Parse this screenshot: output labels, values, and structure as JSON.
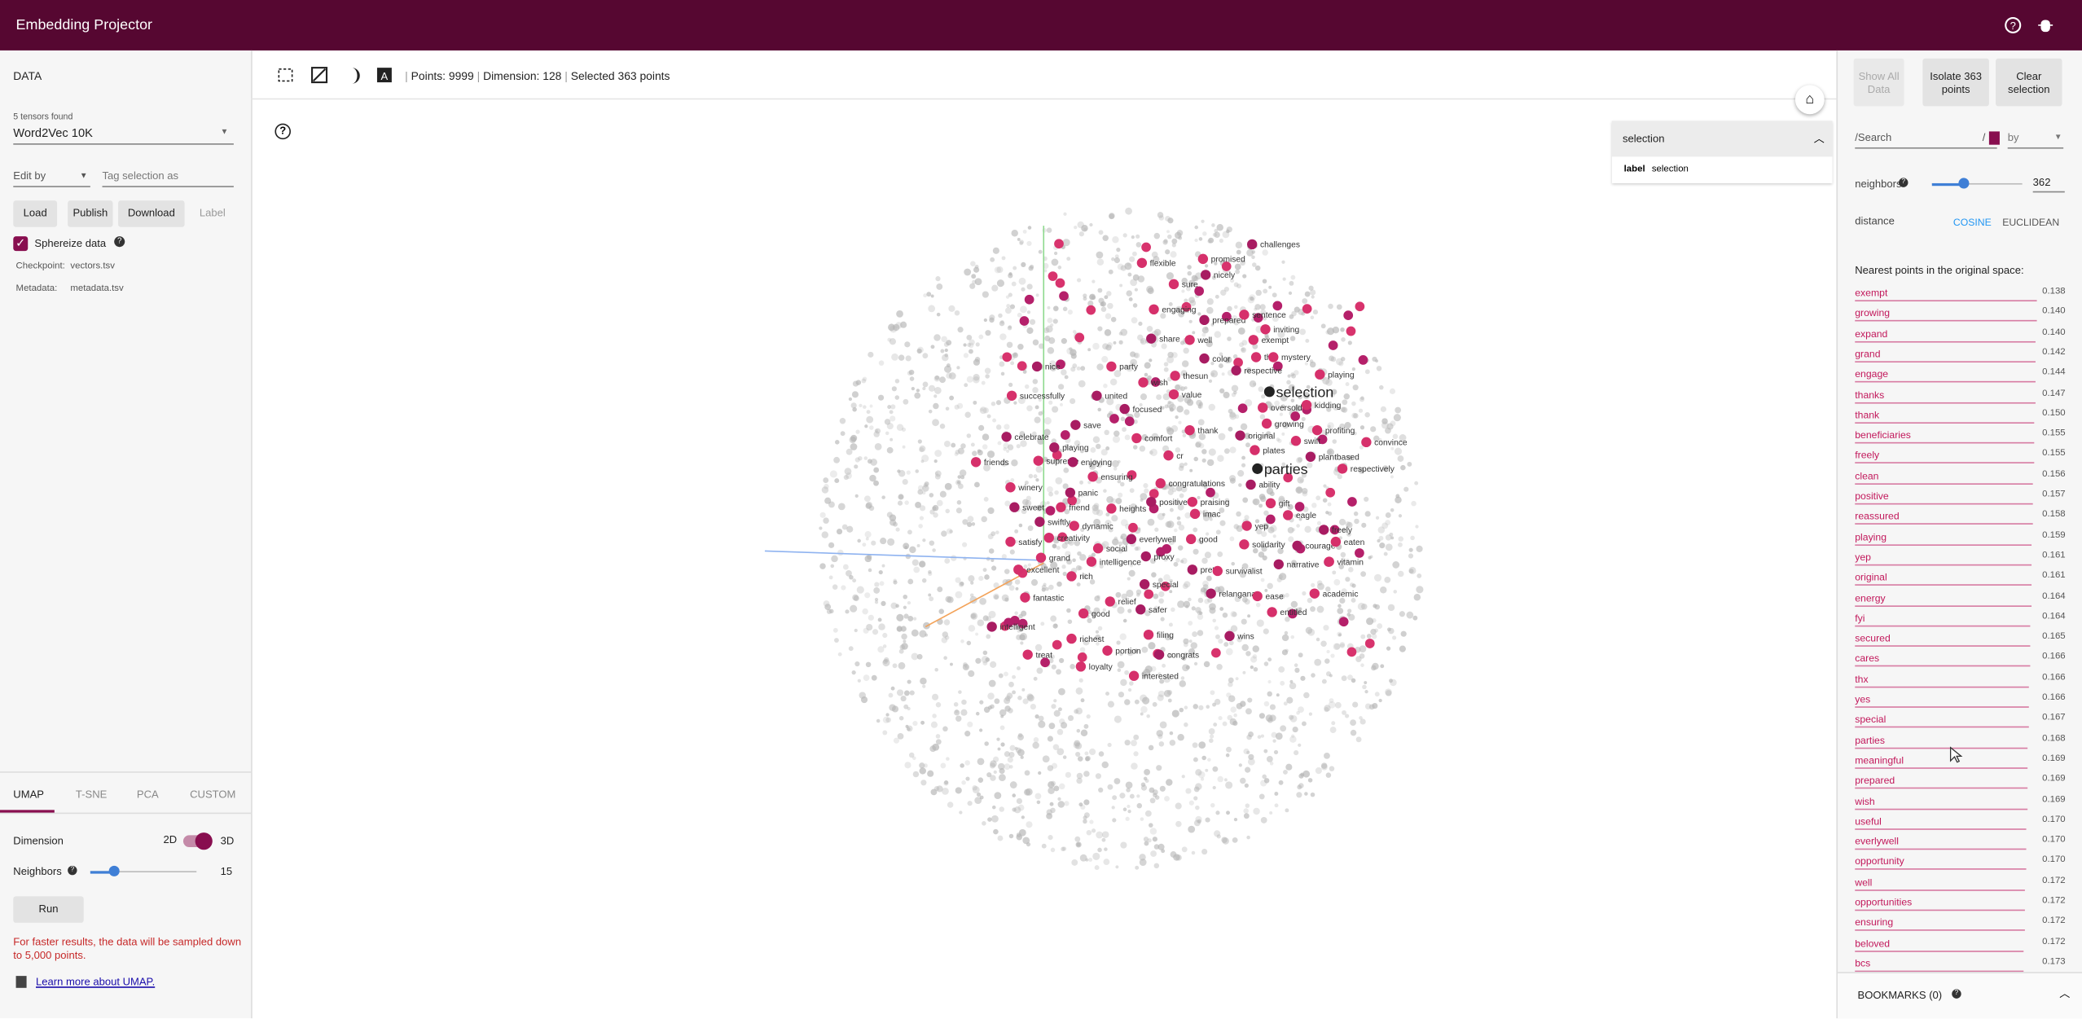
{
  "header": {
    "title": "Embedding Projector"
  },
  "data_panel": {
    "heading": "DATA",
    "tensors_found": "5 tensors found",
    "tensor": "Word2Vec 10K",
    "edit_by": "Edit by",
    "tag_placeholder": "Tag selection as",
    "buttons": [
      "Load",
      "Publish",
      "Download",
      "Label"
    ],
    "sphereize": "Sphereize data",
    "checkpoint_label": "Checkpoint:",
    "checkpoint": "vectors.tsv",
    "metadata_label": "Metadata:",
    "metadata": "metadata.tsv"
  },
  "projection_panel": {
    "tabs": [
      "UMAP",
      "T-SNE",
      "PCA",
      "CUSTOM"
    ],
    "dimension": "Dimension",
    "dim_2d": "2D",
    "dim_3d": "3D",
    "neighbors": "Neighbors",
    "neighbors_value": "15",
    "run": "Run",
    "note": "For faster results, the data will be sampled down to 5,000 points.",
    "learn_more": "Learn more about UMAP."
  },
  "toolbar": {
    "points": "Points: 9999",
    "dimension": "Dimension: 128",
    "selected": "Selected 363 points"
  },
  "selection_box": {
    "title": "selection",
    "label_key": "label",
    "label_value": "selection"
  },
  "scatter": {
    "highlight_labels": [
      "selection",
      "parties"
    ],
    "labels": [
      "challenges",
      "promised",
      "flexible",
      "nicely",
      "sure",
      "engaging",
      "prepared",
      "sentence",
      "inviting",
      "share",
      "well",
      "exempt",
      "color",
      "thx",
      "mystery",
      "nice",
      "party",
      "thesun",
      "respective",
      "playing",
      "wish",
      "united",
      "value",
      "successfully",
      "focused",
      "oversold",
      "kidding",
      "save",
      "growing",
      "profiting",
      "celebrate",
      "comfort",
      "thank",
      "original",
      "swift",
      "convince",
      "playing",
      "cr",
      "plates",
      "plantbased",
      "friends",
      "supreme",
      "enjoying",
      "respectively",
      "ensuring",
      "ability",
      "winery",
      "congratulations",
      "panic",
      "friend",
      "heights",
      "positive",
      "praising",
      "gift",
      "sweet",
      "imac",
      "eagle",
      "swiftly",
      "dynamic",
      "yep",
      "freely",
      "satisfy",
      "creativity",
      "everlywell",
      "good",
      "solidarity",
      "courage",
      "eaten",
      "social",
      "proxy",
      "grand",
      "intelligence",
      "narrative",
      "vitamin",
      "excellent",
      "pretty",
      "survivalist",
      "rich",
      "special",
      "academic",
      "fantastic",
      "relangana",
      "ease",
      "relief",
      "safer",
      "good",
      "entitled",
      "intelligent",
      "richest",
      "filing",
      "wins",
      "treat",
      "portion",
      "congrats",
      "loyalty",
      "interested"
    ]
  },
  "inspector": {
    "buttons": [
      "Show All Data",
      "Isolate 363 points",
      "Clear selection"
    ],
    "search": "/Search",
    "regex": "/",
    "by": "by",
    "neighbors": "neighbors",
    "neighbors_value": "362",
    "distance": "distance",
    "metrics": [
      "COSINE",
      "EUCLIDEAN"
    ],
    "nearest_title": "Nearest points in the original space:",
    "nearest": [
      {
        "label": "exempt",
        "distance": "0.138"
      },
      {
        "label": "growing",
        "distance": "0.140"
      },
      {
        "label": "expand",
        "distance": "0.140"
      },
      {
        "label": "grand",
        "distance": "0.142"
      },
      {
        "label": "engage",
        "distance": "0.144"
      },
      {
        "label": "thanks",
        "distance": "0.147"
      },
      {
        "label": "thank",
        "distance": "0.150"
      },
      {
        "label": "beneficiaries",
        "distance": "0.155"
      },
      {
        "label": "freely",
        "distance": "0.155"
      },
      {
        "label": "clean",
        "distance": "0.156"
      },
      {
        "label": "positive",
        "distance": "0.157"
      },
      {
        "label": "reassured",
        "distance": "0.158"
      },
      {
        "label": "playing",
        "distance": "0.159"
      },
      {
        "label": "yep",
        "distance": "0.161"
      },
      {
        "label": "original",
        "distance": "0.161"
      },
      {
        "label": "energy",
        "distance": "0.164"
      },
      {
        "label": "fyi",
        "distance": "0.164"
      },
      {
        "label": "secured",
        "distance": "0.165"
      },
      {
        "label": "cares",
        "distance": "0.166"
      },
      {
        "label": "thx",
        "distance": "0.166"
      },
      {
        "label": "yes",
        "distance": "0.166"
      },
      {
        "label": "special",
        "distance": "0.167"
      },
      {
        "label": "parties",
        "distance": "0.168"
      },
      {
        "label": "meaningful",
        "distance": "0.169"
      },
      {
        "label": "prepared",
        "distance": "0.169"
      },
      {
        "label": "wish",
        "distance": "0.169"
      },
      {
        "label": "useful",
        "distance": "0.170"
      },
      {
        "label": "everlywell",
        "distance": "0.170"
      },
      {
        "label": "opportunity",
        "distance": "0.170"
      },
      {
        "label": "well",
        "distance": "0.172"
      },
      {
        "label": "opportunities",
        "distance": "0.172"
      },
      {
        "label": "ensuring",
        "distance": "0.172"
      },
      {
        "label": "beloved",
        "distance": "0.172"
      },
      {
        "label": "bcs",
        "distance": "0.173"
      }
    ]
  },
  "bookmarks": {
    "title": "BOOKMARKS (0)"
  }
}
